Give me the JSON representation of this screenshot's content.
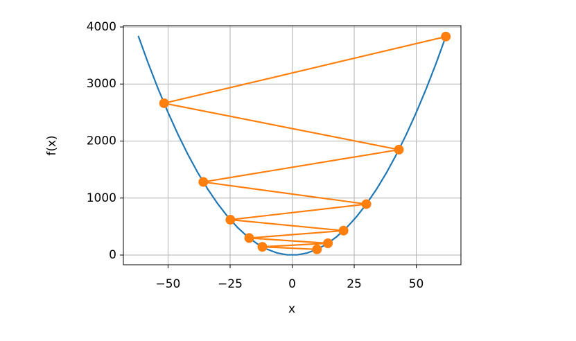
{
  "chart_data": {
    "type": "line",
    "xlabel": "x",
    "ylabel": "f(x)",
    "xlim": [
      -68,
      68
    ],
    "ylim": [
      -170,
      4024
    ],
    "xticks": [
      {
        "value": -50,
        "label": "−50"
      },
      {
        "value": -25,
        "label": "−25"
      },
      0,
      25,
      50
    ],
    "yticks": [
      0,
      1000,
      2000,
      3000,
      4000
    ],
    "grid": true,
    "series": [
      {
        "color": "#1f77b4",
        "markers": false,
        "x": [
          -62,
          -58,
          -54,
          -50,
          -46,
          -42,
          -38,
          -34,
          -30,
          -26,
          -22,
          -18,
          -14,
          -10,
          -6,
          -2,
          2,
          6,
          10,
          14,
          18,
          22,
          26,
          30,
          34,
          38,
          42,
          46,
          50,
          54,
          58,
          62
        ],
        "values": [
          3844,
          3364,
          2916,
          2500,
          2116,
          1764,
          1444,
          1156,
          900,
          676,
          484,
          324,
          196,
          100,
          36,
          4,
          4,
          36,
          100,
          196,
          324,
          484,
          676,
          900,
          1156,
          1444,
          1764,
          2116,
          2500,
          2916,
          3364,
          3844
        ]
      },
      {
        "color": "#ff7f0e",
        "markers": true,
        "x": [
          61.9,
          -51.6,
          43.0,
          -35.8,
          29.9,
          -24.9,
          20.7,
          -17.3,
          14.4,
          -12.0,
          10.0
        ],
        "values": [
          3832,
          2663,
          1849,
          1282,
          894,
          620,
          428,
          299,
          207,
          144,
          100
        ]
      }
    ]
  }
}
